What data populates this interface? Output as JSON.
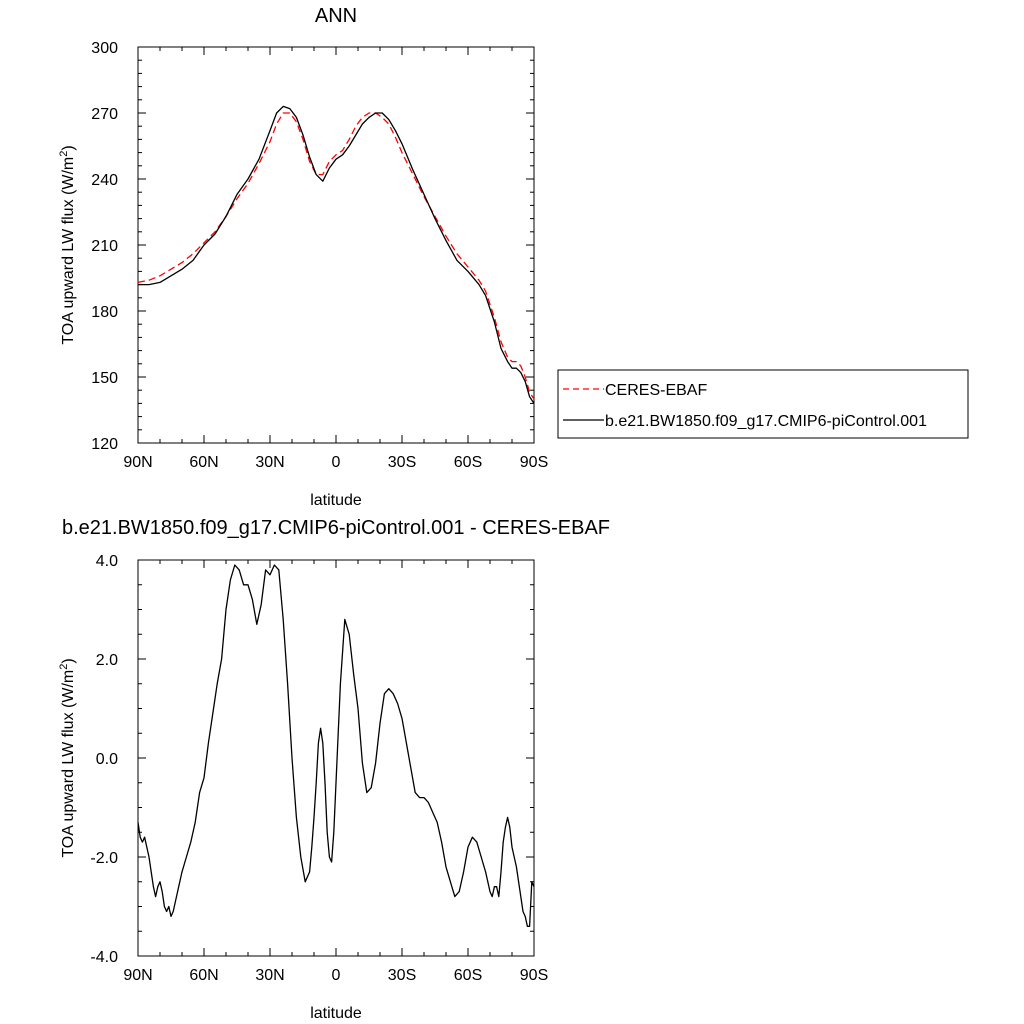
{
  "chart_data": [
    {
      "type": "line",
      "title": "ANN",
      "xlabel": "latitude",
      "ylabel_main": "TOA upward LW flux (W/m",
      "ylabel_sup": "2",
      "ylabel_tail": ")",
      "xlim": [
        90,
        -90
      ],
      "ylim": [
        120,
        300
      ],
      "xticks": [
        90,
        60,
        30,
        0,
        -30,
        -60,
        -90
      ],
      "xticklabels": [
        "90N",
        "60N",
        "30N",
        "0",
        "30S",
        "60S",
        "90S"
      ],
      "yticks": [
        120,
        150,
        180,
        210,
        240,
        270,
        300
      ],
      "yticklabels": [
        "120",
        "150",
        "180",
        "210",
        "240",
        "270",
        "300"
      ],
      "grid": false,
      "legend_position": "right",
      "series": [
        {
          "name": "CERES-EBAF",
          "color": "#ff0000",
          "dash": "dashed",
          "x": [
            90,
            85,
            80,
            75,
            70,
            65,
            60,
            55,
            50,
            45,
            40,
            35,
            30,
            27,
            24,
            21,
            18,
            15,
            12,
            9,
            6,
            3,
            0,
            -3,
            -6,
            -9,
            -12,
            -15,
            -18,
            -21,
            -24,
            -27,
            -30,
            -35,
            -40,
            -45,
            -50,
            -55,
            -60,
            -65,
            -68,
            -72,
            -75,
            -78,
            -80,
            -82,
            -84,
            -86,
            -88,
            -90
          ],
          "y": [
            193,
            194,
            196,
            199,
            202,
            206,
            211,
            216,
            223,
            231,
            238,
            247,
            257,
            265,
            270,
            270,
            266,
            258,
            248,
            242,
            242,
            248,
            251,
            253,
            258,
            264,
            268,
            270,
            270,
            268,
            265,
            259,
            252,
            242,
            232,
            223,
            214,
            206,
            200,
            194,
            189,
            177,
            166,
            159,
            157,
            157,
            155,
            150,
            143,
            140
          ]
        },
        {
          "name": "b.e21.BW1850.f09_g17.CMIP6-piControl.001",
          "color": "#000000",
          "dash": "solid",
          "x": [
            90,
            85,
            80,
            75,
            70,
            65,
            60,
            55,
            50,
            45,
            40,
            35,
            30,
            27,
            24,
            21,
            18,
            15,
            12,
            9,
            6,
            3,
            0,
            -3,
            -6,
            -9,
            -12,
            -15,
            -18,
            -21,
            -24,
            -27,
            -30,
            -35,
            -40,
            -45,
            -50,
            -55,
            -60,
            -65,
            -68,
            -72,
            -75,
            -78,
            -80,
            -82,
            -84,
            -86,
            -88,
            -90
          ],
          "y": [
            192,
            192,
            193,
            196,
            199,
            203,
            210,
            215,
            223,
            233,
            240,
            249,
            262,
            270,
            273,
            272,
            268,
            260,
            250,
            242,
            239,
            245,
            249,
            251,
            255,
            260,
            265,
            268,
            270,
            270,
            267,
            262,
            256,
            244,
            233,
            222,
            212,
            203,
            198,
            192,
            187,
            175,
            163,
            157,
            154,
            154,
            152,
            148,
            141,
            138
          ]
        }
      ]
    },
    {
      "type": "line",
      "title": "b.e21.BW1850.f09_g17.CMIP6-piControl.001 - CERES-EBAF",
      "xlabel": "latitude",
      "ylabel_main": "TOA upward LW flux (W/m",
      "ylabel_sup": "2",
      "ylabel_tail": ")",
      "xlim": [
        90,
        -90
      ],
      "ylim": [
        -4,
        4
      ],
      "xticks": [
        90,
        60,
        30,
        0,
        -30,
        -60,
        -90
      ],
      "xticklabels": [
        "90N",
        "60N",
        "30N",
        "0",
        "30S",
        "60S",
        "90S"
      ],
      "yticks": [
        -4,
        -2,
        0,
        2,
        4
      ],
      "yticklabels": [
        "-4.0",
        "-2.0",
        "0.0",
        "2.0",
        "4.0"
      ],
      "grid": false,
      "series": [
        {
          "color": "#000000",
          "dash": "solid",
          "x": [
            90,
            89,
            88,
            87,
            86,
            85,
            84,
            83,
            82,
            81,
            80,
            79,
            78,
            77,
            76,
            75,
            74,
            72,
            70,
            68,
            66,
            64,
            62,
            60,
            58,
            56,
            54,
            52,
            50,
            48,
            46,
            44,
            42,
            40,
            38,
            36,
            34,
            32,
            30,
            28,
            26,
            24,
            22,
            20,
            18,
            16,
            14,
            12,
            11,
            10,
            9,
            8,
            7,
            6,
            5,
            4,
            3,
            2,
            1,
            0,
            -2,
            -4,
            -6,
            -8,
            -10,
            -12,
            -14,
            -16,
            -18,
            -20,
            -22,
            -24,
            -26,
            -28,
            -30,
            -32,
            -34,
            -36,
            -38,
            -40,
            -42,
            -44,
            -46,
            -48,
            -50,
            -52,
            -54,
            -56,
            -58,
            -60,
            -62,
            -64,
            -66,
            -68,
            -70,
            -71,
            -72,
            -73,
            -74,
            -75,
            -76,
            -77,
            -78,
            -79,
            -80,
            -82,
            -84,
            -85,
            -86,
            -87,
            -88,
            -89,
            -90
          ],
          "y": [
            -1.3,
            -1.6,
            -1.7,
            -1.6,
            -1.8,
            -2.0,
            -2.3,
            -2.6,
            -2.8,
            -2.6,
            -2.5,
            -2.7,
            -3.0,
            -3.1,
            -3.0,
            -3.2,
            -3.1,
            -2.7,
            -2.3,
            -2.0,
            -1.7,
            -1.3,
            -0.7,
            -0.4,
            0.3,
            0.9,
            1.5,
            2.0,
            3.0,
            3.6,
            3.9,
            3.8,
            3.5,
            3.5,
            3.2,
            2.7,
            3.1,
            3.8,
            3.7,
            3.9,
            3.8,
            2.8,
            1.5,
            0.0,
            -1.2,
            -2.0,
            -2.5,
            -2.3,
            -1.8,
            -1.2,
            -0.5,
            0.3,
            0.6,
            0.3,
            -0.5,
            -1.5,
            -2.0,
            -2.1,
            -1.5,
            -0.5,
            1.5,
            2.8,
            2.5,
            1.7,
            1.0,
            -0.1,
            -0.7,
            -0.6,
            -0.1,
            0.7,
            1.3,
            1.4,
            1.3,
            1.1,
            0.8,
            0.3,
            -0.2,
            -0.7,
            -0.8,
            -0.8,
            -0.9,
            -1.1,
            -1.3,
            -1.7,
            -2.2,
            -2.5,
            -2.8,
            -2.7,
            -2.3,
            -1.8,
            -1.6,
            -1.7,
            -2.0,
            -2.3,
            -2.7,
            -2.8,
            -2.6,
            -2.6,
            -2.8,
            -2.3,
            -1.7,
            -1.4,
            -1.2,
            -1.4,
            -1.8,
            -2.2,
            -2.8,
            -3.1,
            -3.2,
            -3.4,
            -3.4,
            -2.5,
            -2.6
          ]
        }
      ]
    }
  ],
  "legend": {
    "entries": [
      {
        "label": "CERES-EBAF",
        "color": "#ff0000",
        "dash": "dashed"
      },
      {
        "label": "b.e21.BW1850.f09_g17.CMIP6-piControl.001",
        "color": "#000000",
        "dash": "solid"
      }
    ]
  }
}
